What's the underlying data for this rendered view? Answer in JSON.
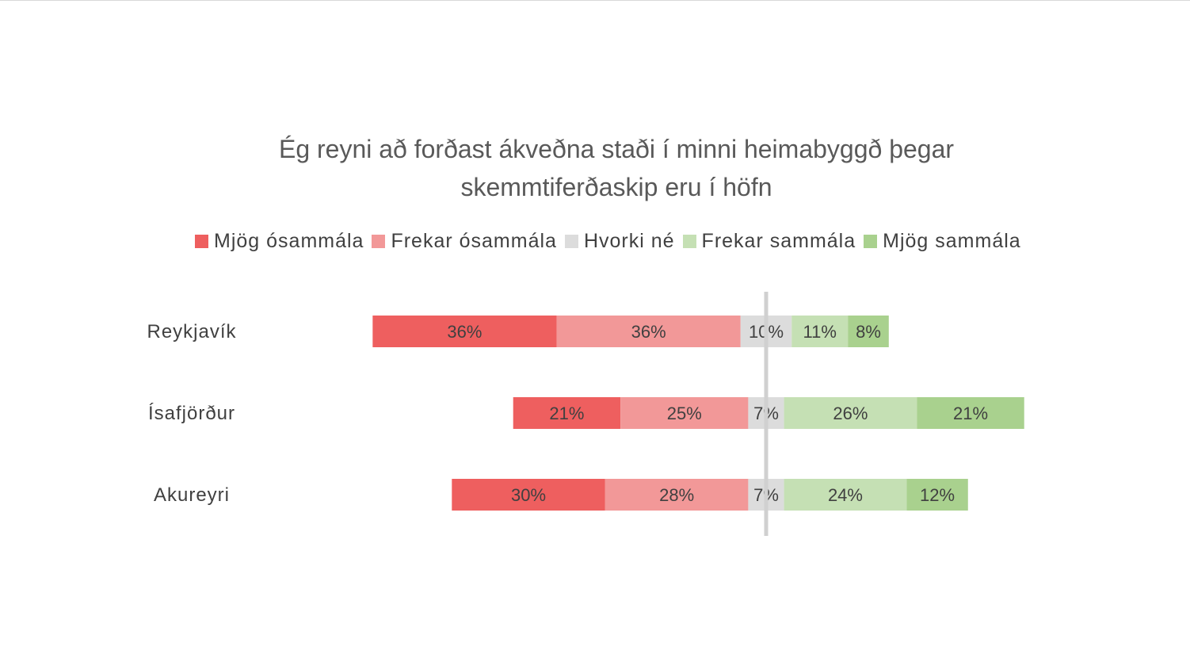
{
  "chart_data": {
    "type": "bar",
    "orientation": "horizontal",
    "stacked": "diverging",
    "title_lines": [
      "Ég reyni að forðast ákveðna staði í minni heimabyggð þegar",
      "skemmtiferðaskip eru í höfn"
    ],
    "categories": [
      "Reykjavík",
      "Ísafjörður",
      "Akureyri"
    ],
    "series": [
      {
        "name": "Mjög ósammála",
        "color": "#ee5f5f",
        "values": [
          36,
          21,
          30
        ]
      },
      {
        "name": "Frekar ósammála",
        "color": "#f29898",
        "values": [
          36,
          25,
          28
        ]
      },
      {
        "name": "Hvorki né",
        "color": "#dcdcdc",
        "values": [
          10,
          7,
          7
        ]
      },
      {
        "name": "Frekar sammála",
        "color": "#c5e0b4",
        "values": [
          11,
          26,
          24
        ]
      },
      {
        "name": "Mjög sammála",
        "color": "#a9d18e",
        "values": [
          8,
          21,
          12
        ]
      }
    ],
    "value_suffix": "%",
    "legend_position": "top",
    "grid": false,
    "center_line_color": "#d0d0d0"
  }
}
